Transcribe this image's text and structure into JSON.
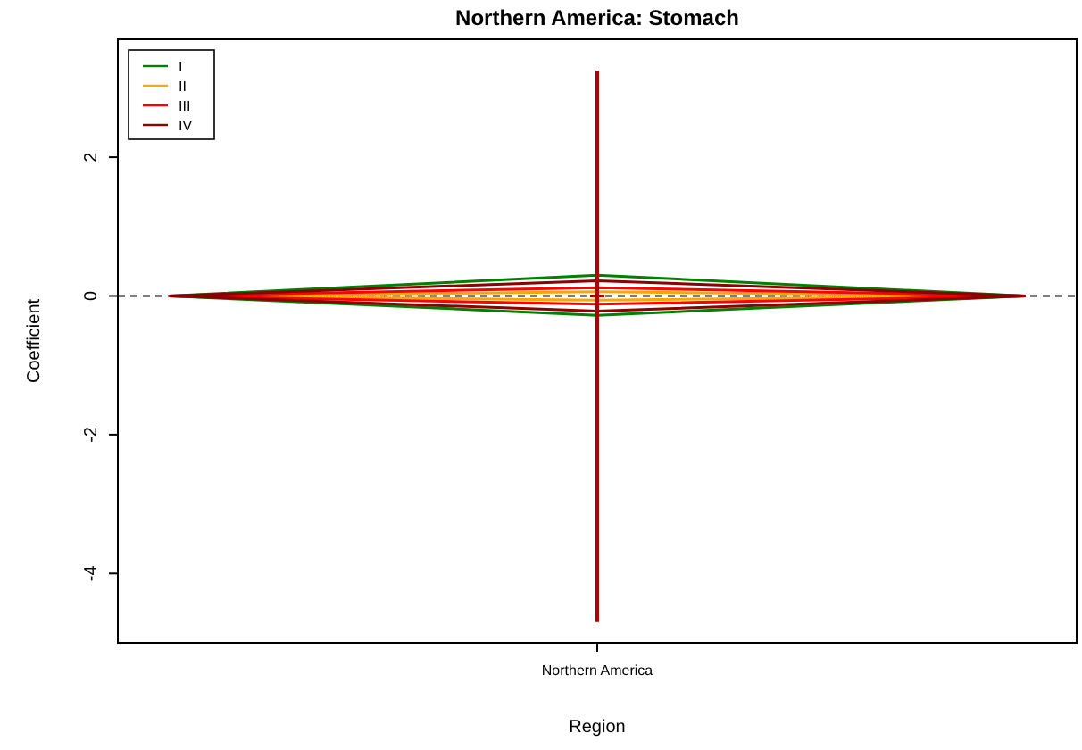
{
  "chart_data": {
    "type": "line",
    "title": "Northern America: Stomach",
    "xlabel": "Region",
    "ylabel": "Coefficient",
    "categories": [
      null,
      "Northern America",
      null
    ],
    "ylim": [
      -5.0,
      3.7
    ],
    "yticks": [
      -4,
      -2,
      0,
      2
    ],
    "grid": false,
    "legend": "top left",
    "line_style": "solid",
    "marker": "none",
    "ref_lines": [
      {
        "axis": "y",
        "value": 0,
        "color": "#000000",
        "line_style": "dashed"
      }
    ],
    "series": [
      {
        "name": "I",
        "color": "#008000",
        "values": [
          0,
          0.3,
          0
        ]
      },
      {
        "color": "#008000",
        "values": [
          0,
          -0.28,
          0
        ]
      },
      {
        "name": "II",
        "color": "#ffa500",
        "values": [
          0,
          0.06,
          0
        ]
      },
      {
        "color": "#ffa500",
        "values": [
          0,
          -0.06,
          0
        ]
      },
      {
        "name": "III",
        "color": "#ff0000",
        "values": [
          0,
          0.12,
          0
        ]
      },
      {
        "color": "#ff0000",
        "values": [
          0,
          -0.12,
          0
        ]
      },
      {
        "name": "IV",
        "color": "#8b0000",
        "values": [
          0,
          0.22,
          0
        ]
      },
      {
        "color": "#8b0000",
        "values": [
          0,
          -0.22,
          0
        ]
      },
      {
        "color": "#b00000",
        "marker": "cross",
        "values": [
          null,
          0,
          null
        ],
        "errors": [
          null,
          [
            -4.7,
            3.25
          ],
          null
        ]
      }
    ]
  }
}
